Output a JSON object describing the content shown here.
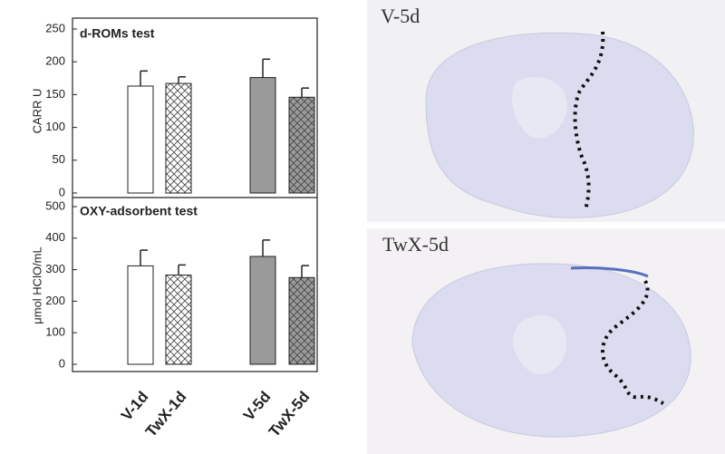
{
  "chart_data": [
    {
      "type": "bar",
      "title": "d-ROMs test",
      "y_label": "CARR U",
      "categories": [
        null,
        null,
        null,
        null
      ],
      "values": [
        163,
        167,
        176,
        146
      ],
      "errors": [
        23,
        10,
        28,
        14
      ],
      "colors": [
        "#ffffff",
        "#ffffff",
        "#9a9a9a",
        "#9a9a9a"
      ],
      "hatch": [
        false,
        true,
        false,
        true
      ],
      "ylim": [
        0,
        250
      ],
      "yticks": [
        0,
        50,
        100,
        150,
        200,
        250
      ]
    },
    {
      "type": "bar",
      "title": "OXY-adsorbent test",
      "y_label": "μmol HClO/mL",
      "categories": [
        "V-1d",
        "TwX-1d",
        "V-5d",
        "TwX-5d"
      ],
      "values": [
        312,
        283,
        342,
        275
      ],
      "errors": [
        50,
        32,
        52,
        38
      ],
      "colors": [
        "#ffffff",
        "#ffffff",
        "#9a9a9a",
        "#9a9a9a"
      ],
      "hatch": [
        false,
        true,
        false,
        true
      ],
      "ylim": [
        0,
        500
      ],
      "yticks": [
        0,
        100,
        200,
        300,
        400,
        500
      ]
    }
  ],
  "images": [
    {
      "label": "V-5d"
    },
    {
      "label": "TwX-5d"
    }
  ]
}
